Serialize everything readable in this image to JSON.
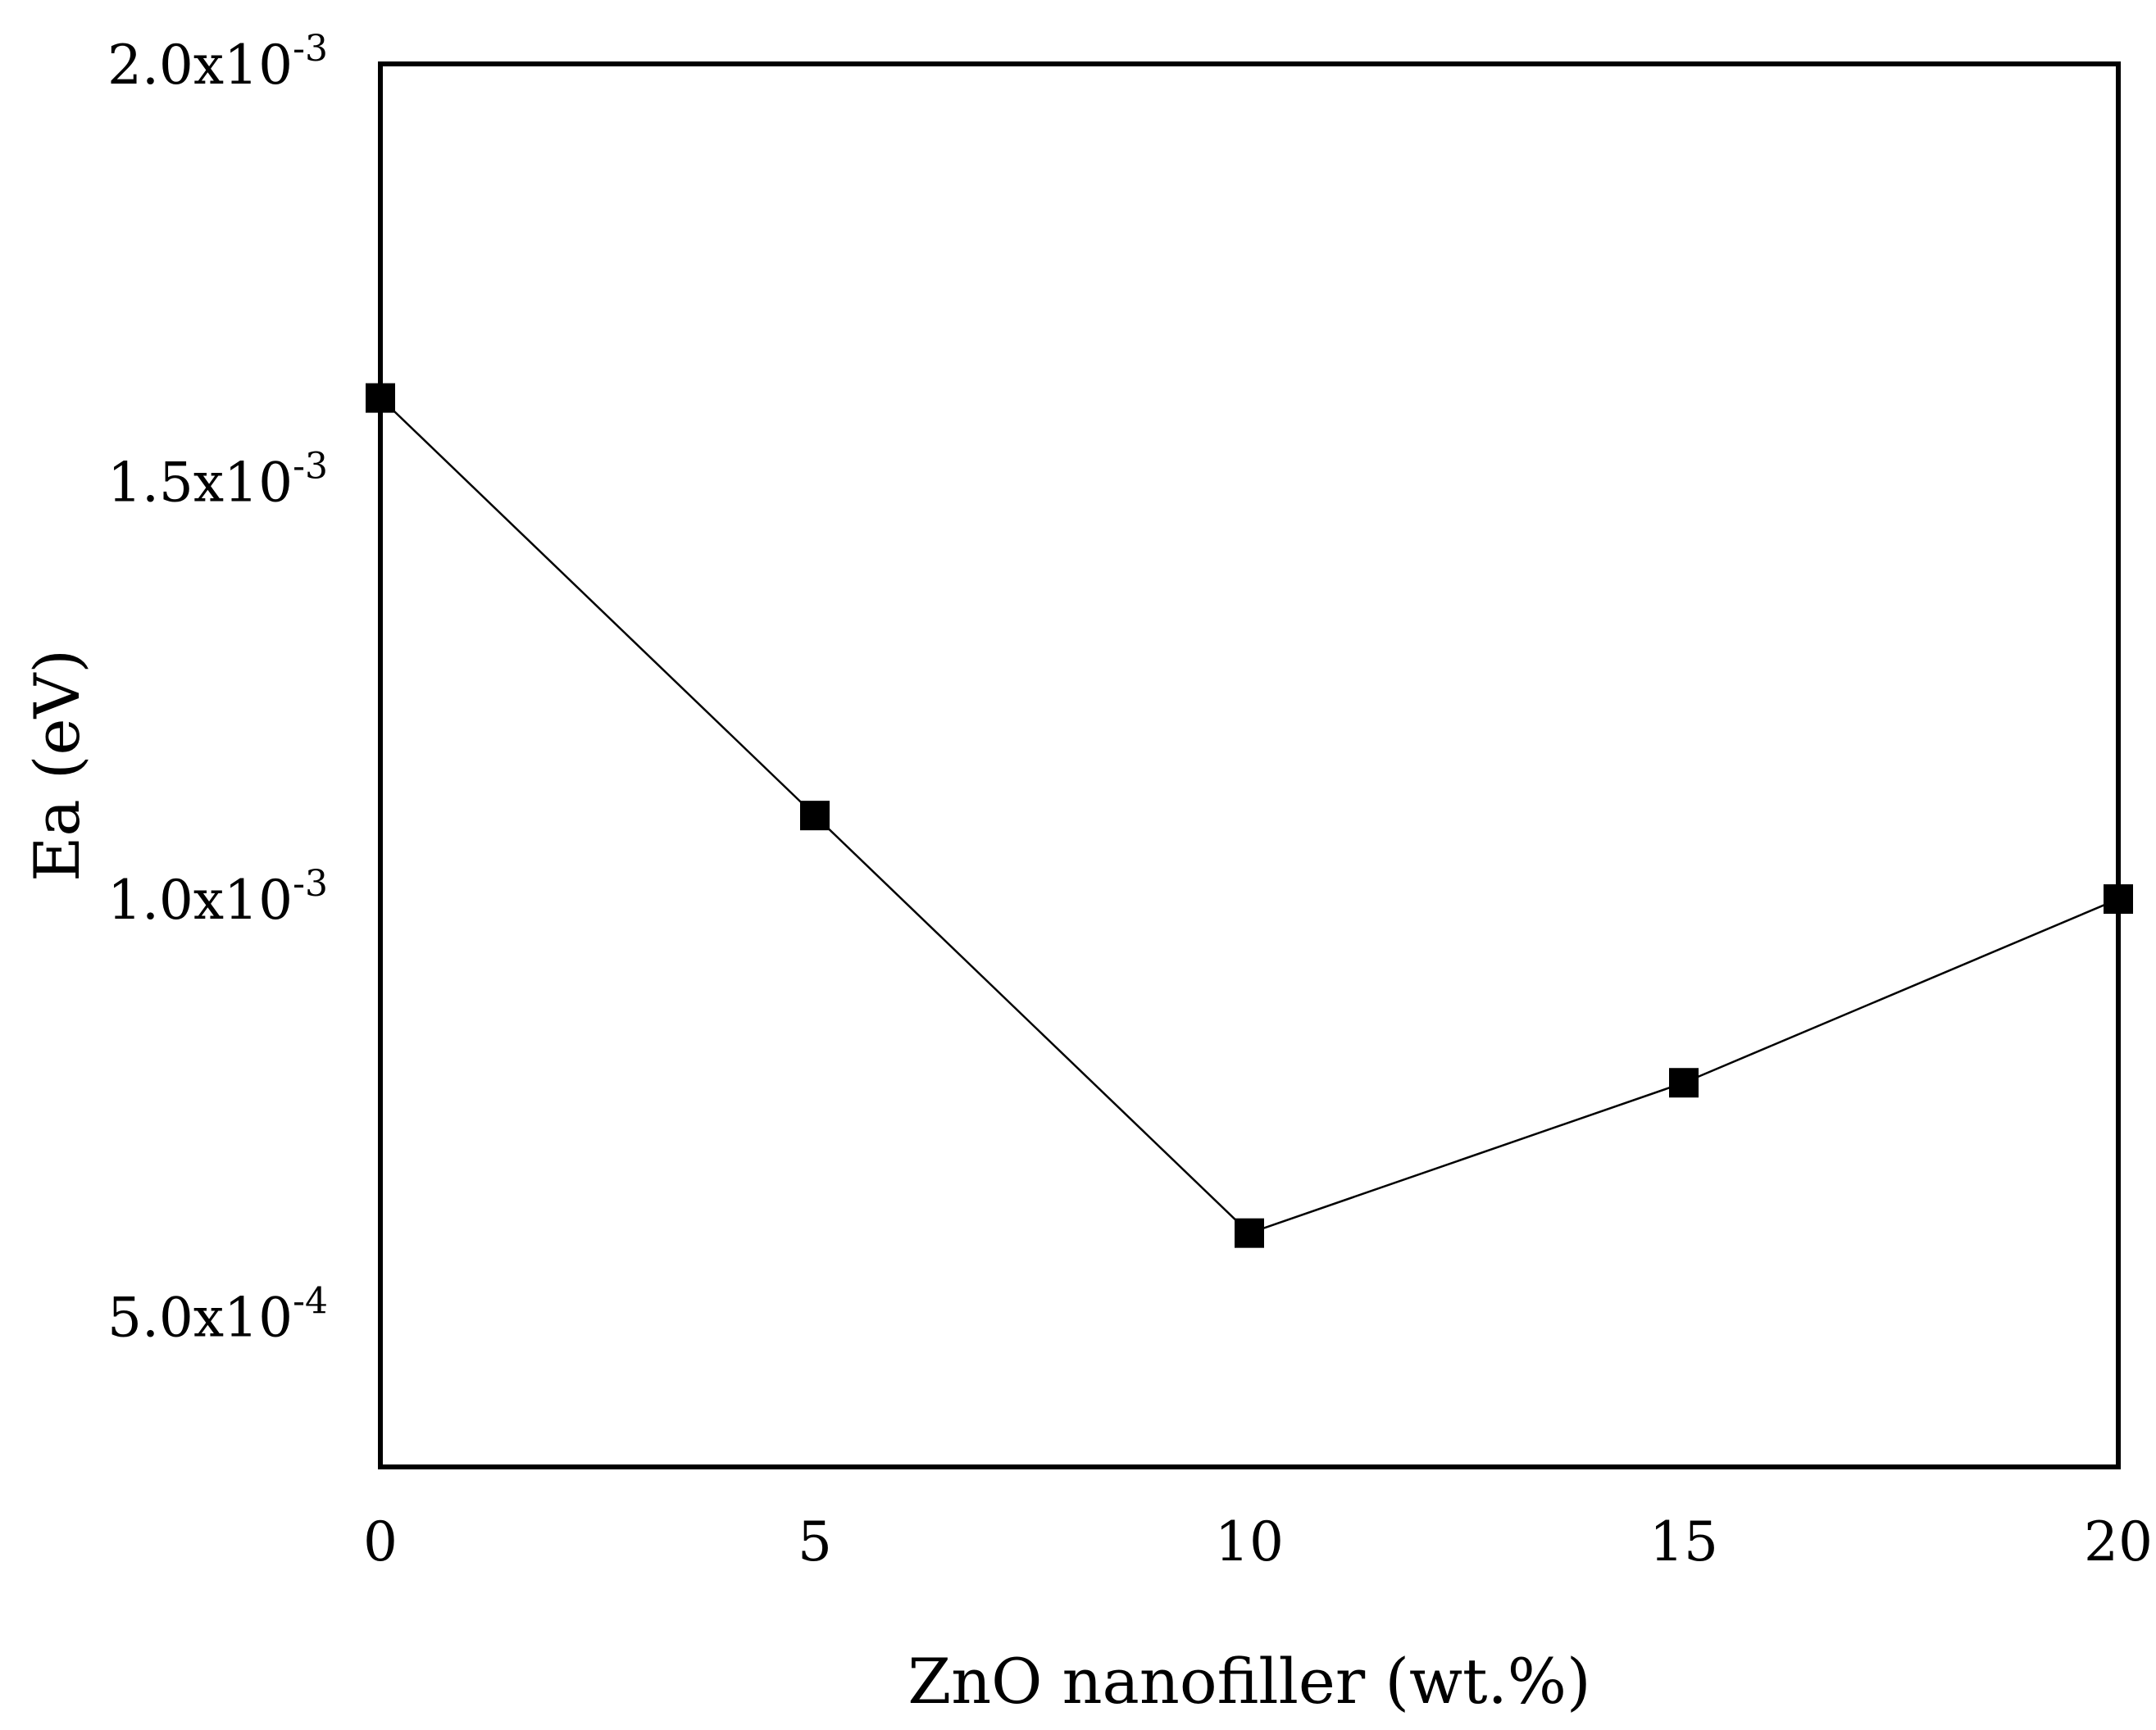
{
  "chart_data": {
    "type": "line",
    "title": "",
    "xlabel": "ZnO nanofiller (wt.%)",
    "ylabel": "Ea (eV)",
    "xlim": [
      0,
      20
    ],
    "ylim": [
      0.00032,
      0.002
    ],
    "x_ticks": [
      {
        "value": 0,
        "label": "0"
      },
      {
        "value": 5,
        "label": "5"
      },
      {
        "value": 10,
        "label": "10"
      },
      {
        "value": 15,
        "label": "15"
      },
      {
        "value": 20,
        "label": "20"
      }
    ],
    "y_ticks": [
      {
        "value": 0.0005,
        "mantissa": "5.0x10",
        "exponent": "-4"
      },
      {
        "value": 0.001,
        "mantissa": "1.0x10",
        "exponent": "-3"
      },
      {
        "value": 0.0015,
        "mantissa": "1.5x10",
        "exponent": "-3"
      },
      {
        "value": 0.002,
        "mantissa": "2.0x10",
        "exponent": "-3"
      }
    ],
    "series": [
      {
        "name": "Ea",
        "marker": "square",
        "color": "#000000",
        "x": [
          0,
          5,
          10,
          15,
          20
        ],
        "y": [
          0.0016,
          0.0011,
          0.0006,
          0.00078,
          0.001
        ]
      }
    ],
    "grid": false,
    "legend": "none"
  }
}
